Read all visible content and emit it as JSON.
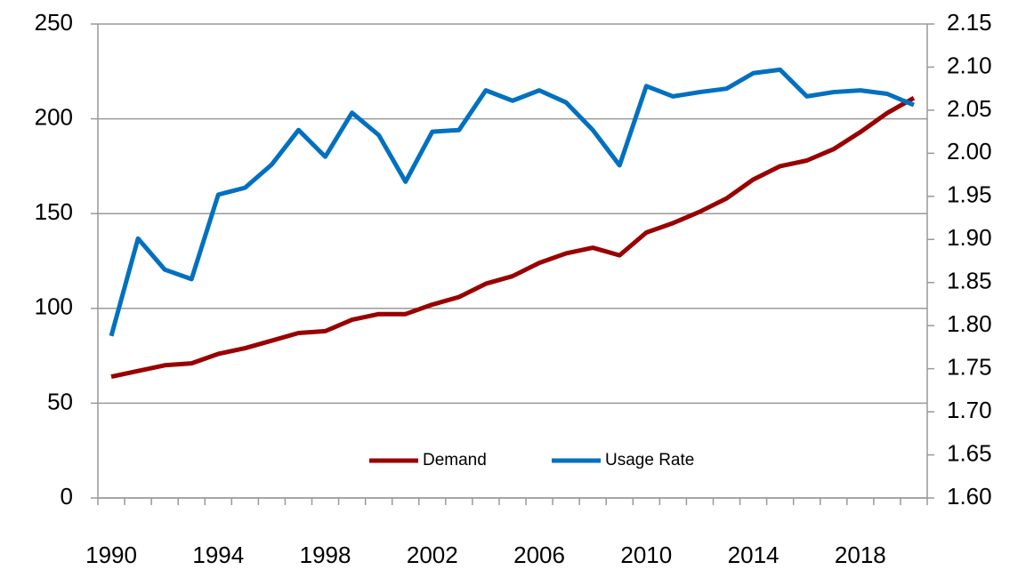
{
  "chart_data": {
    "type": "line",
    "categories": [
      "1990",
      null,
      null,
      null,
      "1994",
      null,
      null,
      null,
      "1998",
      null,
      null,
      null,
      "2002",
      null,
      null,
      null,
      "2006",
      null,
      null,
      null,
      "2010",
      null,
      null,
      null,
      "2014",
      null,
      null,
      null,
      "2018",
      null,
      null
    ],
    "series": [
      {
        "name": "Demand",
        "color": "#990000",
        "values": [
          64,
          67,
          70,
          71,
          76,
          79,
          83,
          87,
          88,
          94,
          97,
          97,
          102,
          106,
          113,
          117,
          124,
          129,
          132,
          128,
          140,
          145,
          151,
          158,
          168,
          175,
          178,
          184,
          193,
          203,
          211
        ]
      },
      {
        "name": "Usage Rate",
        "color": "#0070c0",
        "axis": "y2",
        "values": [
          1.788,
          1.901,
          1.865,
          1.854,
          1.952,
          1.96,
          1.987,
          2.027,
          1.996,
          2.047,
          2.021,
          1.967,
          2.025,
          2.027,
          2.073,
          2.061,
          2.073,
          2.059,
          2.027,
          1.986,
          2.078,
          2.066,
          2.071,
          2.075,
          2.093,
          2.097,
          2.066,
          2.071,
          2.073,
          2.069,
          2.056
        ]
      }
    ],
    "ylim": [
      0,
      250
    ],
    "yticks": [
      0,
      50,
      100,
      150,
      200,
      250
    ],
    "y2lim": [
      1.6,
      2.15
    ],
    "y2ticks": [
      {
        "value": 1.6,
        "label": "1.60"
      },
      1.65,
      {
        "value": 1.7,
        "label": "1.70"
      },
      1.75,
      {
        "value": 1.8,
        "label": "1.80"
      },
      1.85,
      {
        "value": 1.9,
        "label": "1.90"
      },
      1.95,
      {
        "value": 2.0,
        "label": "2.00"
      },
      2.05,
      {
        "value": 2.1,
        "label": "2.10"
      },
      2.15
    ],
    "grid": true,
    "legend": "lower center"
  }
}
